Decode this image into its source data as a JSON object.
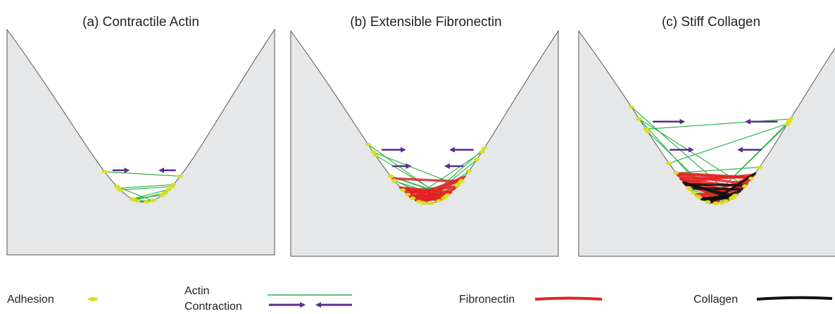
{
  "panels": [
    {
      "title": "(a) Contractile Actin"
    },
    {
      "title": "(b) Extensible Fibronectin"
    },
    {
      "title": "(c) Stiff Collagen"
    }
  ],
  "legend": {
    "adhesion": "Adhesion",
    "actin": [
      "Actin",
      "Contraction"
    ],
    "fibronectin": "Fibronectin",
    "collagen": "Collagen"
  }
}
